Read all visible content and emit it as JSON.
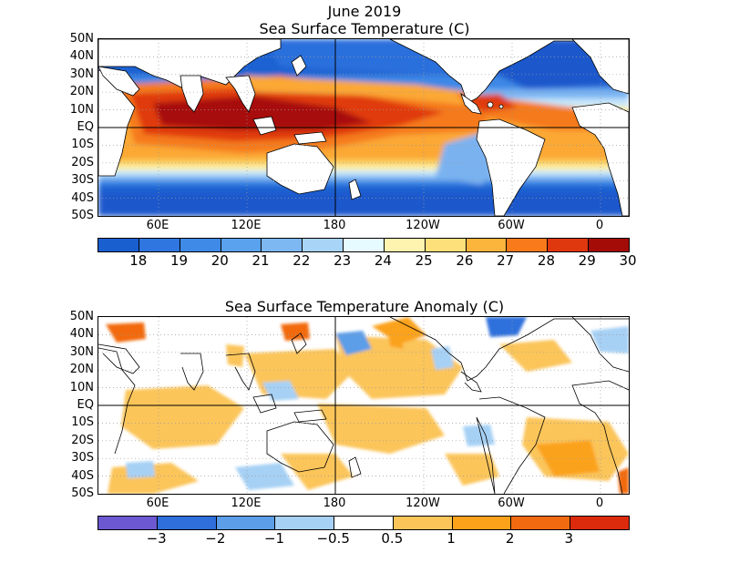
{
  "header": {
    "date": "June 2019"
  },
  "panels": [
    {
      "id": "sst",
      "title": "Sea Surface Temperature (C)",
      "lat_labels": [
        "50N",
        "40N",
        "30N",
        "20N",
        "10N",
        "EQ",
        "10S",
        "20S",
        "30S",
        "40S",
        "50S"
      ],
      "lon_labels": [
        "60E",
        "120E",
        "180",
        "120W",
        "60W",
        "0"
      ],
      "colorbar": {
        "colors": [
          "#1a5fd0",
          "#2f76e0",
          "#3f8ae6",
          "#5aa2ee",
          "#7db8f2",
          "#a8d4f8",
          "#e6fbff",
          "#fff3b0",
          "#fde07a",
          "#fbb43c",
          "#f87a1a",
          "#e0380e",
          "#a40c08"
        ],
        "labels": [
          "18",
          "19",
          "20",
          "21",
          "22",
          "23",
          "24",
          "25",
          "26",
          "27",
          "28",
          "29",
          "30"
        ]
      }
    },
    {
      "id": "anomaly",
      "title": "Sea Surface Temperature Anomaly (C)",
      "lat_labels": [
        "50N",
        "40N",
        "30N",
        "20N",
        "10N",
        "EQ",
        "10S",
        "20S",
        "30S",
        "40S",
        "50S"
      ],
      "lon_labels": [
        "60E",
        "120E",
        "180",
        "120W",
        "60W",
        "0"
      ],
      "colorbar": {
        "colors": [
          "#6c58d0",
          "#2f6fdc",
          "#5c9ee8",
          "#a6d0f4",
          "#ffffff",
          "#fbc55a",
          "#fba21a",
          "#f26a10",
          "#dc2a0c"
        ],
        "labels": [
          "−3",
          "−2",
          "−1",
          "−0.5",
          "0.5",
          "1",
          "2",
          "3"
        ]
      }
    }
  ]
}
